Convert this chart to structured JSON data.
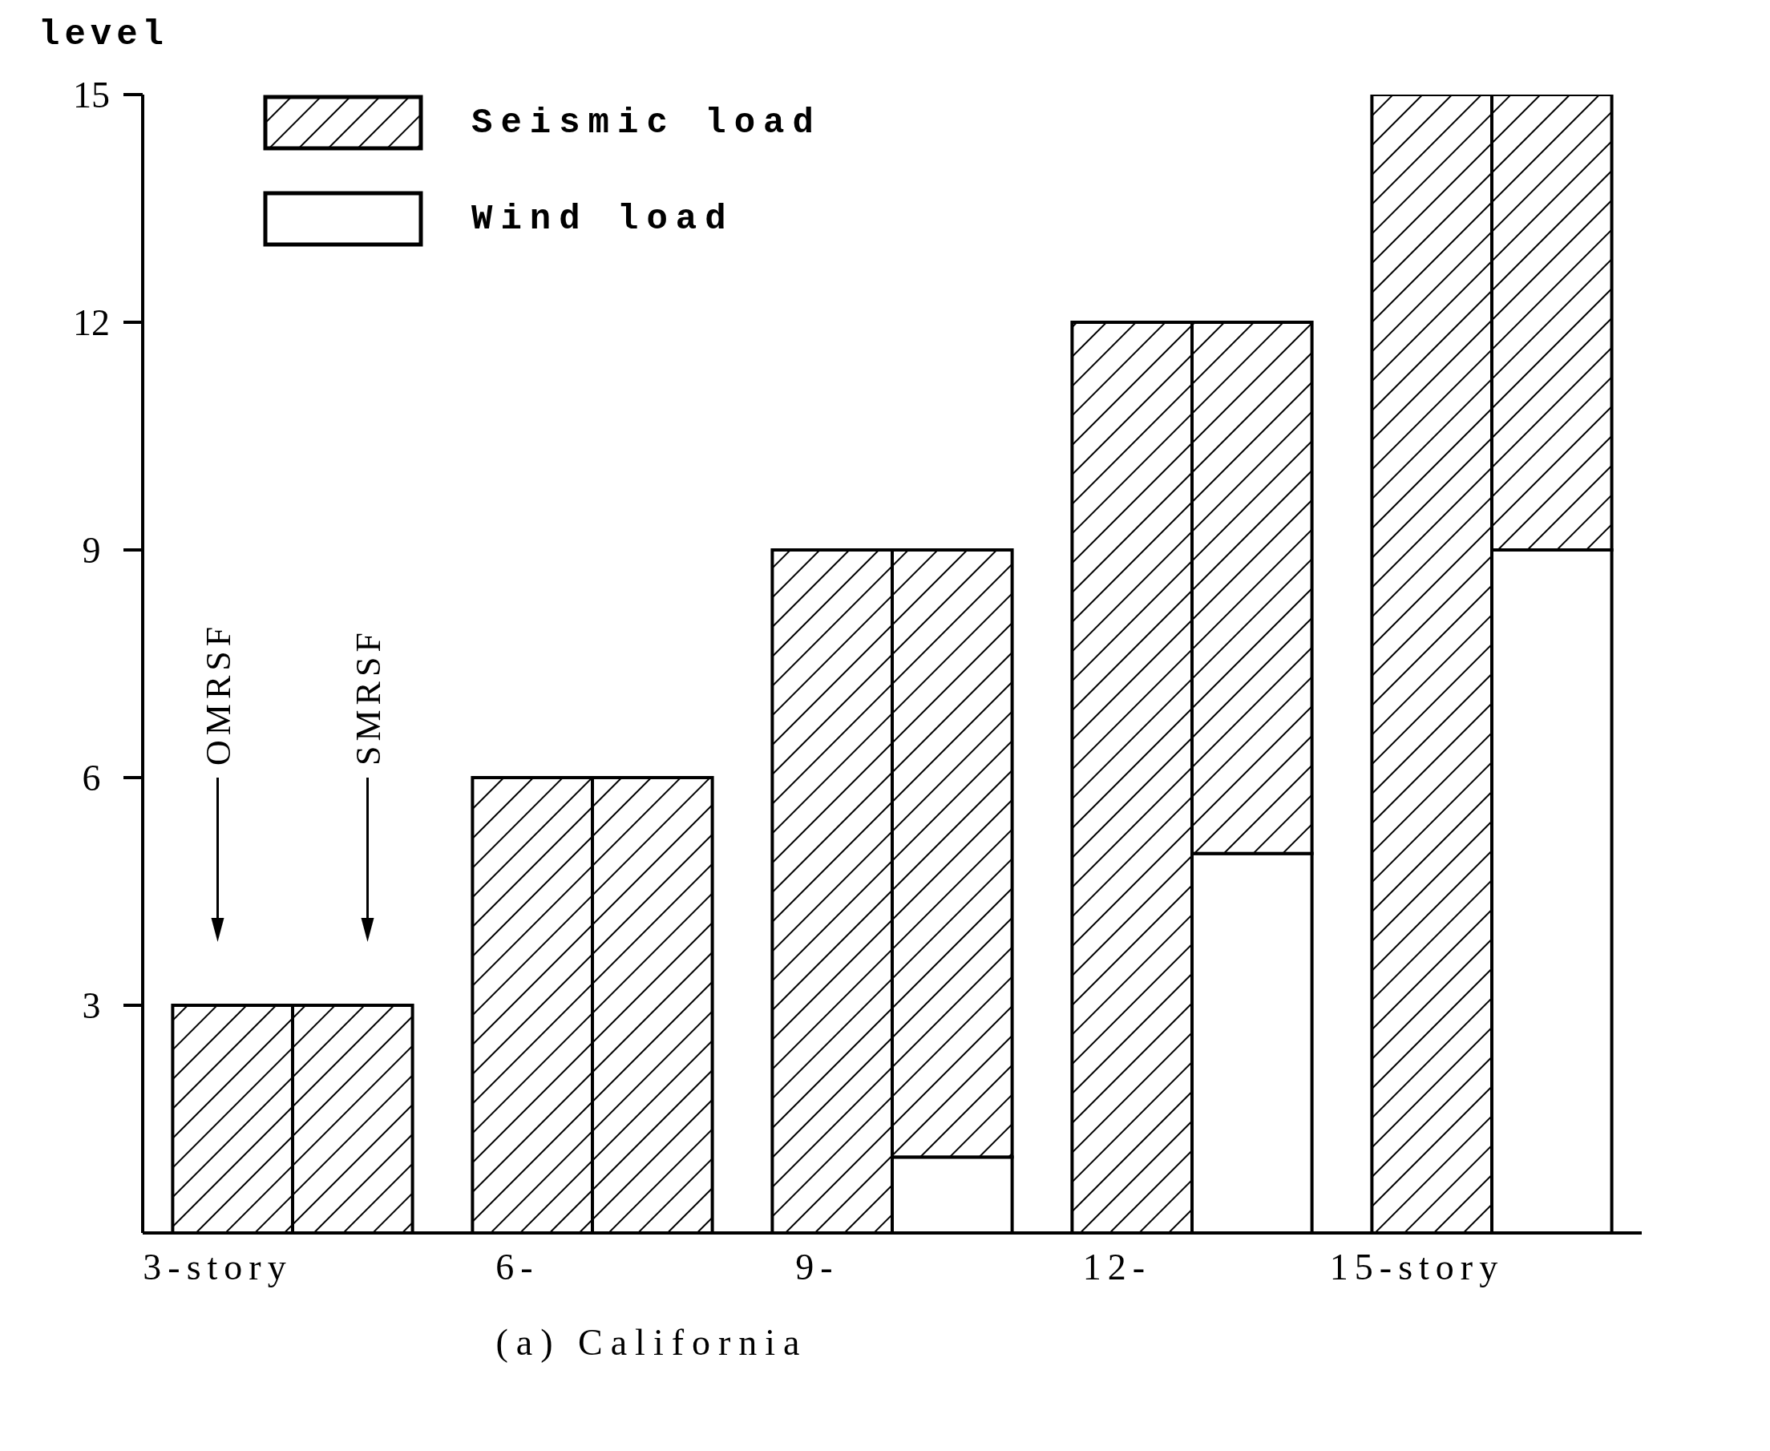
{
  "chart_data": {
    "type": "bar",
    "stacked": true,
    "ylabel": "level",
    "xlabel": "(a) California",
    "categories": [
      "3-story",
      null,
      "6-",
      null,
      "9-",
      null,
      "12-",
      null,
      "15-story",
      null
    ],
    "series": [
      {
        "name": "Wind load",
        "color": "#ffffff",
        "values": [
          null,
          null,
          null,
          null,
          null,
          1,
          null,
          5,
          null,
          9
        ]
      },
      {
        "name": "Seismic load",
        "color": "#000000",
        "values": [
          3,
          3,
          6,
          6,
          9,
          8,
          12,
          7,
          15,
          6
        ]
      }
    ],
    "ylim": [
      0,
      15
    ],
    "yticks": [
      3,
      6,
      9,
      12,
      15
    ],
    "annotations": [
      "OMRSF",
      "SMRSF"
    ],
    "legend": "top left",
    "grid": false
  }
}
